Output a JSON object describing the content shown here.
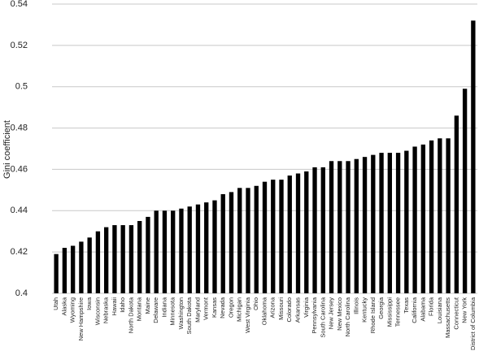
{
  "chart_data": {
    "type": "bar",
    "y_label": "Gini coefficient",
    "categories": [
      "Utah",
      "Alaska",
      "Wyoming",
      "New Hampshire",
      "Iowa",
      "Wisconsin",
      "Nebraska",
      "Hawaii",
      "Idaho",
      "North Dakota",
      "Montana",
      "Maine",
      "Delaware",
      "Indiana",
      "Minnesota",
      "Washington",
      "South Dakota",
      "Maryland",
      "Vermont",
      "Kansas",
      "Nevada",
      "Oregon",
      "Michigan",
      "West Virginia",
      "Ohio",
      "Oklahoma",
      "Arizona",
      "Missouri",
      "Colorado",
      "Arkansas",
      "Virginia",
      "Pennsylvania",
      "South Carolina",
      "New Jersey",
      "New Mexico",
      "North Carolina",
      "Illinois",
      "Kentucky",
      "Rhode Island",
      "Georgia",
      "Mississippi",
      "Tennessee",
      "Texas",
      "California",
      "Alabama",
      "Florida",
      "Louisiana",
      "Massachusetts",
      "Connecticut",
      "New York",
      "District of Columbia"
    ],
    "values": [
      0.419,
      0.422,
      0.423,
      0.425,
      0.427,
      0.43,
      0.432,
      0.433,
      0.433,
      0.433,
      0.435,
      0.437,
      0.44,
      0.44,
      0.44,
      0.441,
      0.442,
      0.443,
      0.444,
      0.445,
      0.448,
      0.449,
      0.451,
      0.451,
      0.452,
      0.454,
      0.455,
      0.455,
      0.457,
      0.458,
      0.459,
      0.461,
      0.461,
      0.464,
      0.464,
      0.464,
      0.465,
      0.466,
      0.467,
      0.468,
      0.468,
      0.468,
      0.469,
      0.471,
      0.472,
      0.474,
      0.475,
      0.475,
      0.486,
      0.499,
      0.532
    ],
    "color": "#000000",
    "ylim": [
      0.4,
      0.54
    ],
    "yticks": [
      0.4,
      0.42,
      0.44,
      0.46,
      0.48,
      0.5,
      0.52,
      0.54
    ],
    "grid": true
  }
}
